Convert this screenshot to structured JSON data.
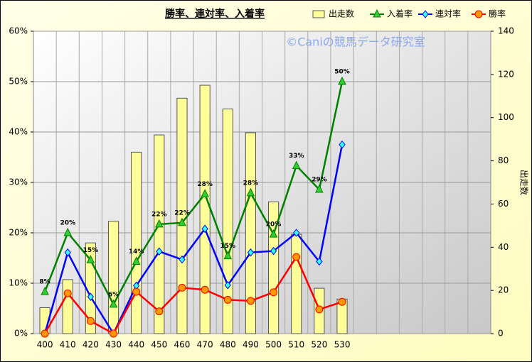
{
  "chart_data": {
    "type": "combo",
    "title": "勝率、連対率、入着率",
    "annotation": "©Caniの競馬データ研究室",
    "y2_label": "出走数",
    "categories": [
      "400",
      "410",
      "420",
      "430",
      "440",
      "450",
      "460",
      "470",
      "480",
      "490",
      "500",
      "510",
      "520",
      "530",
      null,
      null,
      null,
      null,
      null,
      null
    ],
    "ylim": [
      0,
      60
    ],
    "yticks": [
      {
        "value": 0,
        "label": "0%"
      },
      {
        "value": 10,
        "label": "10%"
      },
      {
        "value": 20,
        "label": "20%"
      },
      {
        "value": 30,
        "label": "30%"
      },
      {
        "value": 40,
        "label": "40%"
      },
      {
        "value": 50,
        "label": "50%"
      },
      {
        "value": 60,
        "label": "60%"
      }
    ],
    "y2lim": [
      0,
      140
    ],
    "y2ticks": [
      0,
      20,
      40,
      60,
      80,
      100,
      120,
      140
    ],
    "grid": true,
    "series": [
      {
        "name": "出走数",
        "type": "bar",
        "axis": "y2",
        "color": "#ffff99",
        "values": [
          12,
          25,
          42,
          52,
          84,
          92,
          109,
          115,
          104,
          93,
          61,
          46,
          21,
          16,
          null,
          null,
          null,
          null,
          null,
          null
        ]
      },
      {
        "name": "入着率",
        "type": "line",
        "marker": "triangle",
        "color": "#008000",
        "values": [
          8.3,
          20,
          14.6,
          5.8,
          14.3,
          21.7,
          22,
          27.7,
          15.4,
          27.9,
          19.7,
          33.3,
          28.6,
          50,
          null,
          null,
          null,
          null,
          null,
          null
        ],
        "value_labels": [
          "8%",
          "20%",
          "15%",
          "6%",
          "14%",
          "22%",
          "22%",
          "28%",
          "15%",
          "28%",
          "20%",
          "33%",
          "29%",
          "50%",
          null,
          null,
          null,
          null,
          null,
          null
        ]
      },
      {
        "name": "連対率",
        "type": "line",
        "marker": "diamond",
        "color": "#0000ff",
        "values": [
          0,
          16.1,
          7.3,
          0,
          9.5,
          16.3,
          14.7,
          20.8,
          9.6,
          16.1,
          16.4,
          20,
          14.3,
          37.5,
          null,
          null,
          null,
          null,
          null,
          null
        ]
      },
      {
        "name": "勝率",
        "type": "line",
        "marker": "circle",
        "color": "#ff0000",
        "values": [
          0,
          8,
          2.5,
          0,
          8.3,
          4.4,
          9.1,
          8.7,
          6.7,
          6.5,
          8.2,
          15.2,
          4.8,
          6.3,
          null,
          null,
          null,
          null,
          null,
          null
        ]
      }
    ]
  }
}
